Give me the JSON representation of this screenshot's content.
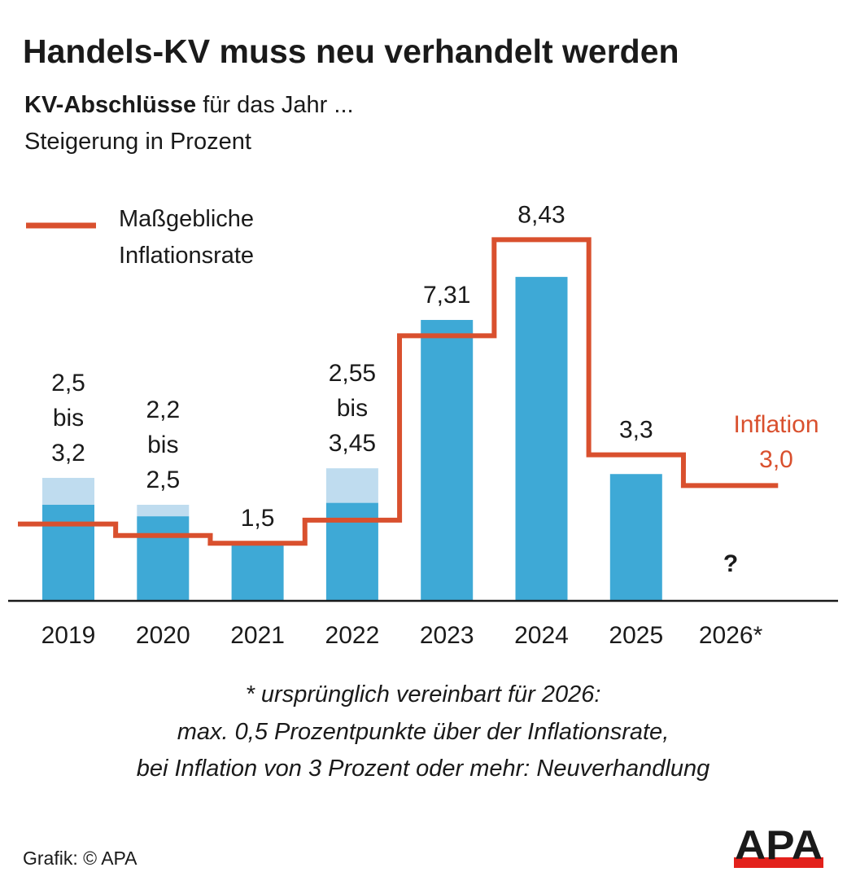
{
  "title": "Handels-KV muss neu verhandelt werden",
  "subtitle_bold": "KV-Abschlüsse",
  "subtitle_rest": " für das Jahr ...",
  "subtitle2": "Steigerung in Prozent",
  "legend": {
    "line1": "Maßgebliche",
    "line2": "Inflationsrate"
  },
  "inflation_label": {
    "line1": "Inflation",
    "line2": "3,0"
  },
  "unknown_label": "?",
  "footnote": [
    "* ursprünglich vereinbart für 2026:",
    "max. 0,5 Prozentpunkte über der Inflationsrate,",
    "bei Inflation von 3 Prozent oder mehr: Neuverhandlung"
  ],
  "credit": "Grafik: © APA",
  "logo_text": "APA",
  "colors": {
    "bar": "#3ea9d6",
    "bar_range": "#bfdcef",
    "inflation_line": "#d9502e",
    "logo_red": "#e3211c"
  },
  "chart_data": {
    "type": "bar",
    "categories": [
      "2019",
      "2020",
      "2021",
      "2022",
      "2023",
      "2024",
      "2025",
      "2026*"
    ],
    "series": [
      {
        "name": "KV-Abschlüsse (min)",
        "values": [
          2.5,
          2.2,
          1.5,
          2.55,
          7.31,
          8.43,
          3.3,
          null
        ]
      },
      {
        "name": "KV-Abschlüsse (max)",
        "values": [
          3.2,
          2.5,
          null,
          3.45,
          null,
          null,
          null,
          null
        ]
      },
      {
        "name": "Maßgebliche Inflationsrate",
        "type": "step-line",
        "values": [
          2.0,
          1.7,
          1.5,
          2.1,
          6.9,
          9.4,
          3.8,
          3.0
        ]
      }
    ],
    "data_labels": [
      [
        "2,5",
        "bis",
        "3,2"
      ],
      [
        "2,2",
        "bis",
        "2,5"
      ],
      [
        "1,5"
      ],
      [
        "2,55",
        "bis",
        "3,45"
      ],
      [
        "7,31"
      ],
      [
        "8,43"
      ],
      [
        "3,3"
      ],
      []
    ],
    "ylim": [
      0,
      10
    ],
    "grid": false,
    "legend_placement": "top-left"
  }
}
